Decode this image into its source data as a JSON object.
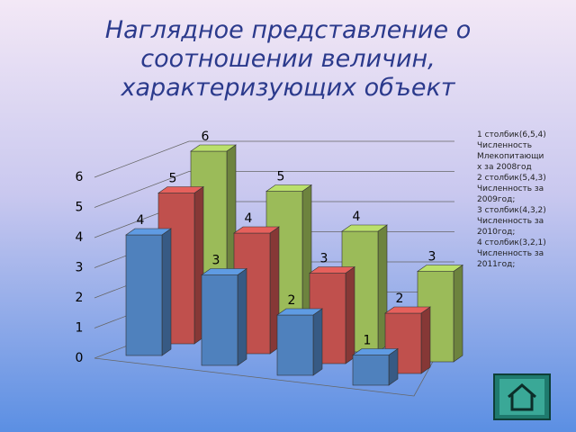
{
  "chart_data": {
    "type": "bar",
    "title": "Наглядное представление о соотношении величин, характеризующих объект",
    "categories": [
      null,
      null,
      null,
      null
    ],
    "series": [
      {
        "color": "#4f81bd",
        "values": [
          4,
          3,
          2,
          1
        ]
      },
      {
        "color": "#c0504d",
        "values": [
          5,
          4,
          3,
          2
        ]
      },
      {
        "color": "#9bbb59",
        "values": [
          6,
          5,
          4,
          3
        ]
      }
    ],
    "ylim": [
      0,
      6
    ],
    "yticks": [
      0,
      1,
      2,
      3,
      4,
      5,
      6
    ],
    "grid": true,
    "annotations": [
      "1 столбик(6,5,4)",
      "Численность",
      "Млекопитающи",
      "х за 2008год",
      "2 столбик(5,4,3)",
      "Численность за",
      "2009год;",
      "3 столбик(4,3,2)",
      "Численность за",
      "2010год;",
      "4 столбик(3,2,1)",
      "Численность за",
      "2011год;"
    ]
  }
}
